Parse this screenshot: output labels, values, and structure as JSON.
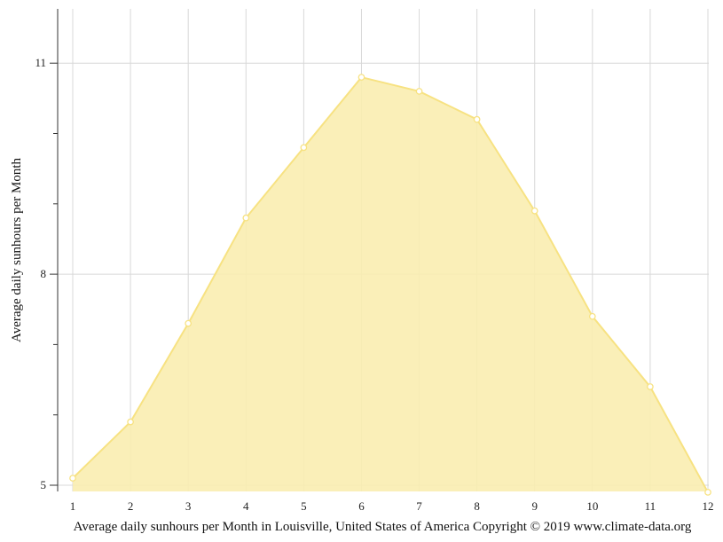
{
  "chart_data": {
    "type": "area",
    "x": [
      1,
      2,
      3,
      4,
      5,
      6,
      7,
      8,
      9,
      10,
      11,
      12
    ],
    "series": [
      {
        "values": [
          5.1,
          5.9,
          7.3,
          8.8,
          9.8,
          10.8,
          10.6,
          10.2,
          8.9,
          7.4,
          6.4,
          4.9
        ]
      }
    ],
    "x_ticks": [
      "1",
      "2",
      "3",
      "4",
      "5",
      "6",
      "7",
      "8",
      "9",
      "10",
      "11",
      "12"
    ],
    "y_ticks": [
      "5",
      "8",
      "11"
    ],
    "xlim": [
      1,
      12
    ],
    "ylim": [
      4.9,
      11.8
    ],
    "ylabel": "Average daily sunhours per Month",
    "xlabel": "Average daily sunhours per Month in Louisville, United States of America Copyright © 2019 www.climate-data.org",
    "grid": true,
    "legend": "none",
    "colors": {
      "fill": "#faedb0",
      "line": "#f7e282",
      "marker_fill": "#ffffff",
      "grid": "#d8d8d8",
      "axis": "#333333"
    }
  }
}
